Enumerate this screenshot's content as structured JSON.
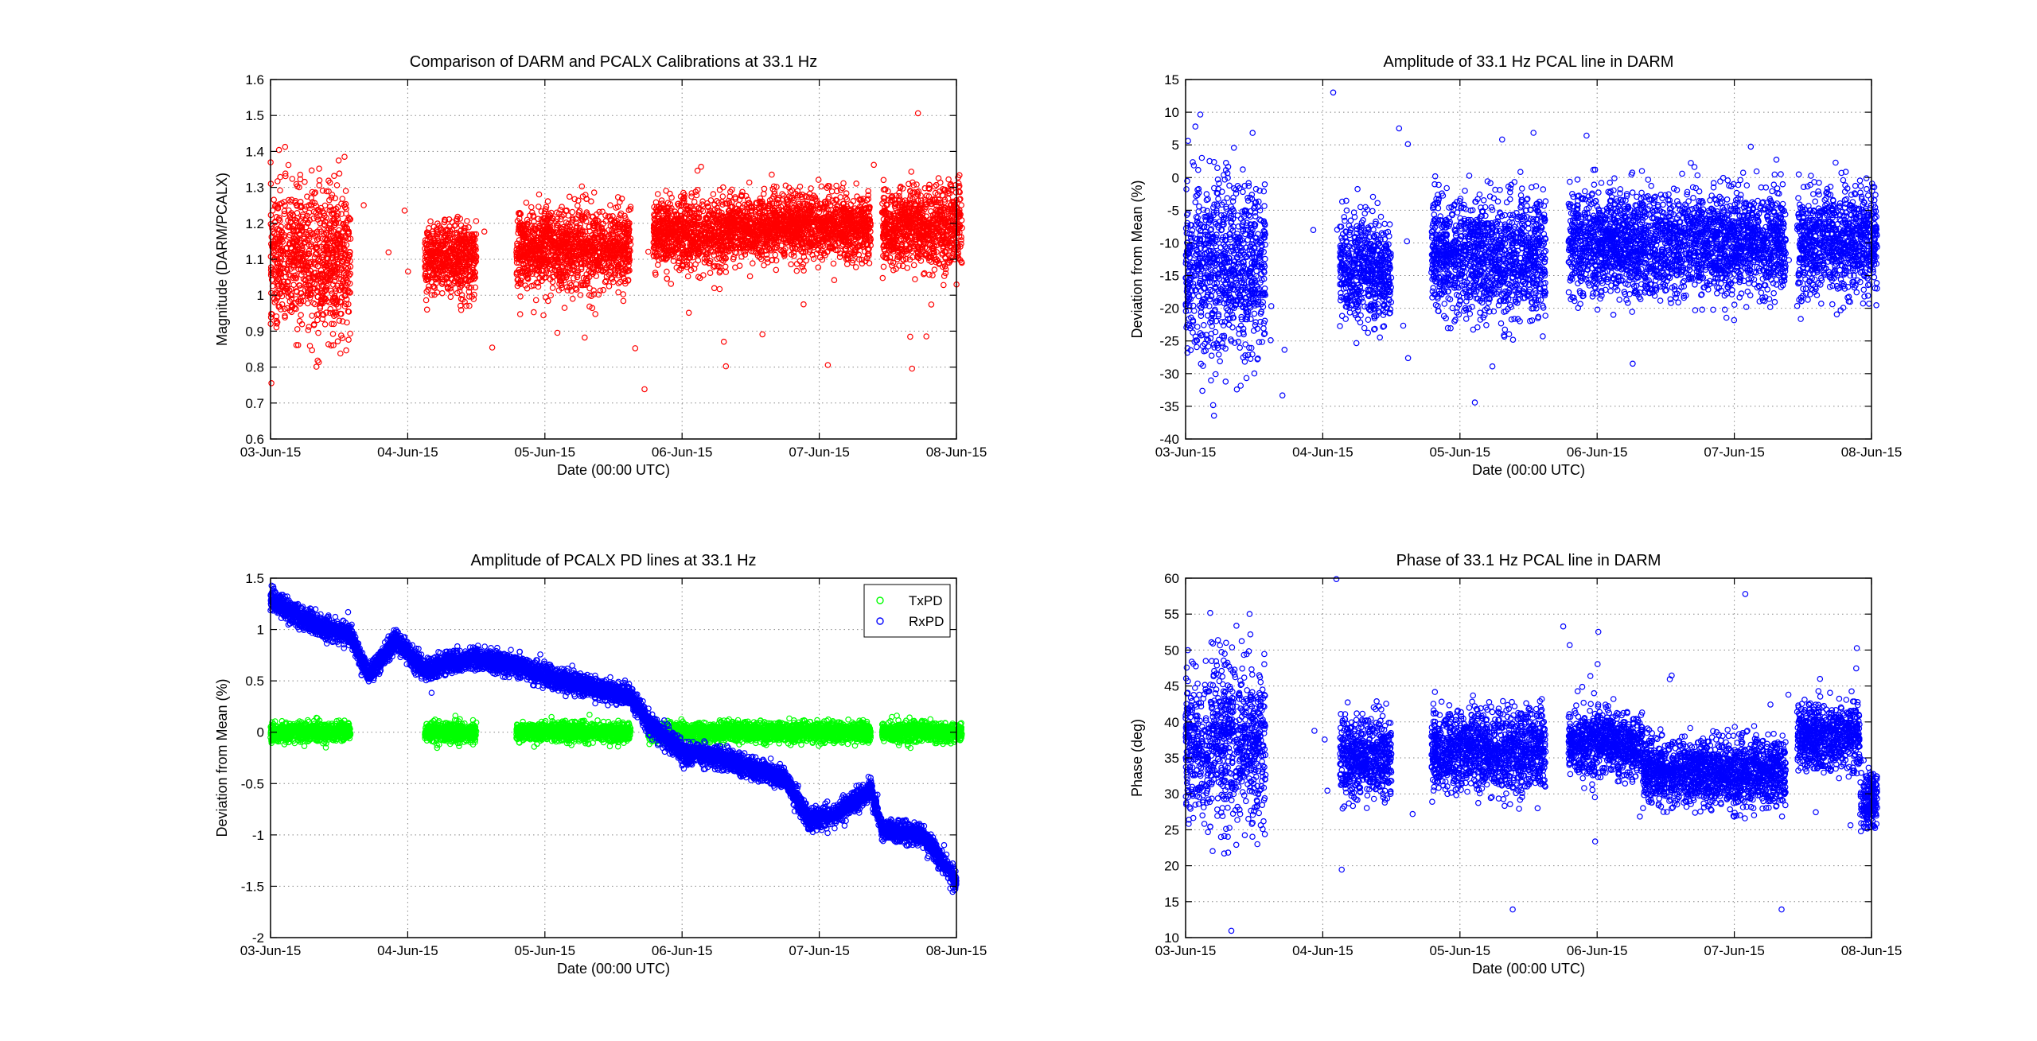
{
  "figure": {
    "background": "#ffffff"
  },
  "chart_data": [
    {
      "type": "scatter",
      "title": "Comparison of DARM and PCALX Calibrations at 33.1 Hz",
      "xlabel": "Date (00:00 UTC)",
      "ylabel": "Magnitude (DARM/PCALX)",
      "xlim": [
        "2015-06-03",
        "2015-06-08"
      ],
      "ylim": [
        0.6,
        1.6
      ],
      "xticks": [
        "03-Jun-15",
        "04-Jun-15",
        "05-Jun-15",
        "06-Jun-15",
        "07-Jun-15",
        "08-Jun-15"
      ],
      "yticks": [
        "0.6",
        "0.7",
        "0.8",
        "0.9",
        "1",
        "1.1",
        "1.2",
        "1.3",
        "1.4",
        "1.5",
        "1.6"
      ],
      "grid": true,
      "marker": "open-circle",
      "series": [
        {
          "color": "#ff0000",
          "segments": [
            {
              "start": "2015-06-03T00:00",
              "end": "2015-06-03T14:00",
              "mean": 1.1,
              "spread": 0.18,
              "density": "high"
            },
            {
              "start": "2015-06-04T03:00",
              "end": "2015-06-04T12:00",
              "mean": 1.1,
              "spread": 0.09,
              "density": "high"
            },
            {
              "start": "2015-06-04T19:00",
              "end": "2015-06-05T15:00",
              "mean": 1.13,
              "spread": 0.1,
              "density": "high"
            },
            {
              "start": "2015-06-05T19:00",
              "end": "2015-06-06T08:00",
              "mean": 1.17,
              "spread": 0.09,
              "density": "high"
            },
            {
              "start": "2015-06-06T08:00",
              "end": "2015-06-07T09:00",
              "mean": 1.19,
              "spread": 0.08,
              "density": "high"
            },
            {
              "start": "2015-06-07T11:00",
              "end": "2015-06-08T01:00",
              "mean": 1.19,
              "spread": 0.1,
              "density": "high"
            }
          ]
        }
      ]
    },
    {
      "type": "scatter",
      "title": "Amplitude of 33.1 Hz PCAL line in DARM",
      "xlabel": "Date (00:00 UTC)",
      "ylabel": "Deviation from Mean (%)",
      "xlim": [
        "2015-06-03",
        "2015-06-08"
      ],
      "ylim": [
        -40,
        15
      ],
      "xticks": [
        "03-Jun-15",
        "04-Jun-15",
        "05-Jun-15",
        "06-Jun-15",
        "07-Jun-15",
        "08-Jun-15"
      ],
      "yticks": [
        "-40",
        "-35",
        "-30",
        "-25",
        "-20",
        "-15",
        "-10",
        "-5",
        "0",
        "5",
        "10",
        "15"
      ],
      "grid": true,
      "marker": "open-circle",
      "series": [
        {
          "color": "#0000ff",
          "segments": [
            {
              "start": "2015-06-03T00:00",
              "end": "2015-06-03T14:00",
              "mean": -14,
              "spread": 12,
              "density": "high"
            },
            {
              "start": "2015-06-04T03:00",
              "end": "2015-06-04T12:00",
              "mean": -14,
              "spread": 7,
              "density": "high"
            },
            {
              "start": "2015-06-04T19:00",
              "end": "2015-06-05T15:00",
              "mean": -12,
              "spread": 8,
              "density": "high"
            },
            {
              "start": "2015-06-05T19:00",
              "end": "2015-06-07T09:00",
              "mean": -10,
              "spread": 7,
              "density": "high"
            },
            {
              "start": "2015-06-07T11:00",
              "end": "2015-06-08T01:00",
              "mean": -10,
              "spread": 7,
              "density": "high"
            }
          ]
        }
      ]
    },
    {
      "type": "scatter",
      "title": "Amplitude of PCALX PD lines at 33.1 Hz",
      "xlabel": "Date (00:00 UTC)",
      "ylabel": "Deviation from Mean (%)",
      "xlim": [
        "2015-06-03",
        "2015-06-08"
      ],
      "ylim": [
        -2,
        1.5
      ],
      "xticks": [
        "03-Jun-15",
        "04-Jun-15",
        "05-Jun-15",
        "06-Jun-15",
        "07-Jun-15",
        "08-Jun-15"
      ],
      "yticks": [
        "-2",
        "-1.5",
        "-1",
        "-0.5",
        "0",
        "0.5",
        "1",
        "1.5"
      ],
      "grid": true,
      "legend_position": "top-right",
      "marker": "open-circle",
      "series": [
        {
          "name": "TxPD",
          "color": "#00ff00",
          "points": [
            [
              "2015-06-03T00:00",
              0
            ],
            [
              "2015-06-03T14:00",
              0
            ],
            [
              "2015-06-04T03:00",
              0
            ],
            [
              "2015-06-04T12:00",
              0
            ],
            [
              "2015-06-04T19:00",
              0
            ],
            [
              "2015-06-05T15:00",
              0
            ],
            [
              "2015-06-05T18:00",
              0
            ],
            [
              "2015-06-07T09:00",
              0
            ],
            [
              "2015-06-07T11:00",
              0
            ],
            [
              "2015-06-08T01:00",
              0
            ]
          ]
        },
        {
          "name": "RxPD",
          "color": "#0000ff",
          "points": [
            [
              "2015-06-03T00:00",
              1.3
            ],
            [
              "2015-06-03T04:00",
              1.15
            ],
            [
              "2015-06-03T10:00",
              1.0
            ],
            [
              "2015-06-03T14:00",
              0.95
            ],
            [
              "2015-06-03T17:00",
              0.55
            ],
            [
              "2015-06-03T22:00",
              0.9
            ],
            [
              "2015-06-04T03:00",
              0.6
            ],
            [
              "2015-06-04T07:00",
              0.68
            ],
            [
              "2015-06-04T12:00",
              0.72
            ],
            [
              "2015-06-04T19:00",
              0.65
            ],
            [
              "2015-06-05T00:00",
              0.55
            ],
            [
              "2015-06-05T05:00",
              0.48
            ],
            [
              "2015-06-05T10:00",
              0.42
            ],
            [
              "2015-06-05T15:00",
              0.35
            ],
            [
              "2015-06-05T18:00",
              0.1
            ],
            [
              "2015-06-06T00:00",
              -0.2
            ],
            [
              "2015-06-06T07:00",
              -0.25
            ],
            [
              "2015-06-06T12:00",
              -0.35
            ],
            [
              "2015-06-06T18:00",
              -0.45
            ],
            [
              "2015-06-06T22:00",
              -0.85
            ],
            [
              "2015-06-07T03:00",
              -0.8
            ],
            [
              "2015-06-07T09:00",
              -0.55
            ],
            [
              "2015-06-07T11:00",
              -0.95
            ],
            [
              "2015-06-07T18:00",
              -1.0
            ],
            [
              "2015-06-08T00:00",
              -1.45
            ]
          ]
        }
      ]
    },
    {
      "type": "scatter",
      "title": "Phase of 33.1 Hz PCAL line in DARM",
      "xlabel": "Date (00:00 UTC)",
      "ylabel": "Phase (deg)",
      "xlim": [
        "2015-06-03",
        "2015-06-08"
      ],
      "ylim": [
        10,
        60
      ],
      "xticks": [
        "03-Jun-15",
        "04-Jun-15",
        "05-Jun-15",
        "06-Jun-15",
        "07-Jun-15",
        "08-Jun-15"
      ],
      "yticks": [
        "10",
        "15",
        "20",
        "25",
        "30",
        "35",
        "40",
        "45",
        "50",
        "55",
        "60"
      ],
      "grid": true,
      "marker": "open-circle",
      "series": [
        {
          "color": "#0000ff",
          "segments": [
            {
              "start": "2015-06-03T00:00",
              "end": "2015-06-03T14:00",
              "mean": 37,
              "spread": 10,
              "density": "high"
            },
            {
              "start": "2015-06-04T03:00",
              "end": "2015-06-04T12:00",
              "mean": 35,
              "spread": 5,
              "density": "high"
            },
            {
              "start": "2015-06-04T19:00",
              "end": "2015-06-05T15:00",
              "mean": 36,
              "spread": 5,
              "density": "high"
            },
            {
              "start": "2015-06-05T19:00",
              "end": "2015-06-06T08:00",
              "mean": 37,
              "spread": 4,
              "density": "high"
            },
            {
              "start": "2015-06-06T08:00",
              "end": "2015-06-07T09:00",
              "mean": 33,
              "spread": 4,
              "density": "high"
            },
            {
              "start": "2015-06-07T11:00",
              "end": "2015-06-07T22:00",
              "mean": 38,
              "spread": 4,
              "density": "high"
            },
            {
              "start": "2015-06-07T22:00",
              "end": "2015-06-08T01:00",
              "mean": 29,
              "spread": 4,
              "density": "high"
            }
          ]
        }
      ]
    }
  ]
}
